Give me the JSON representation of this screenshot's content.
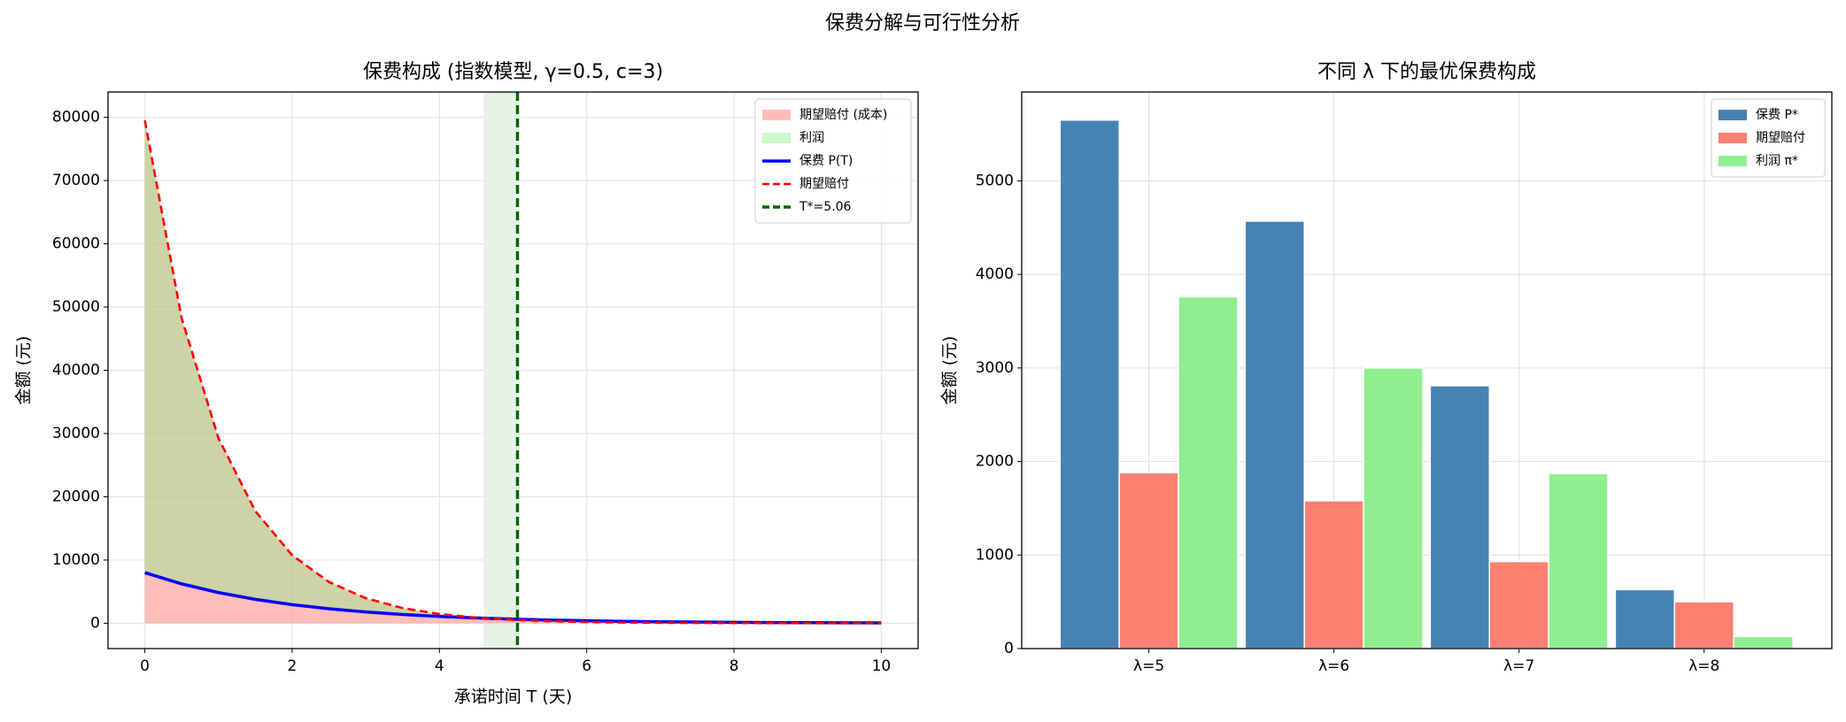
{
  "title": "保费分解与可行性分析",
  "chart_data": [
    {
      "type": "line",
      "title": "保费构成 (指数模型, γ=0.5, c=3)",
      "xlabel": "承诺时间 T (天)",
      "ylabel": "金额 (元)",
      "x": [
        0,
        0.5,
        1,
        1.5,
        2,
        2.5,
        3,
        3.5,
        4,
        4.5,
        5,
        5.5,
        6,
        6.5,
        7,
        7.5,
        8,
        8.5,
        9,
        9.5,
        10
      ],
      "series": [
        {
          "name": "保费 P(T)",
          "color": "#0000ff",
          "dashed": false,
          "values": [
            8000,
            6230,
            4850,
            3780,
            2940,
            2290,
            1790,
            1390,
            1080,
            840,
            660,
            510,
            400,
            310,
            240,
            190,
            150,
            110,
            90,
            70,
            50
          ]
        },
        {
          "name": "期望赔付",
          "color": "#ff0000",
          "dashed": true,
          "values": [
            79500,
            48220,
            29250,
            17740,
            10760,
            6530,
            3960,
            2400,
            1460,
            880,
            540,
            325,
            197,
            120,
            72,
            44,
            27,
            16,
            10,
            6,
            4
          ]
        }
      ],
      "fills": [
        {
          "name": "期望赔付 (成本)",
          "color": "#ff9a94"
        },
        {
          "name": "利润",
          "color": "#90ee90"
        }
      ],
      "vline": {
        "x": 5.06,
        "label": "T*=5.06",
        "color": "#006400"
      },
      "vspan": {
        "range": [
          4.6,
          5.06
        ],
        "color": "#e6f2e6"
      },
      "xlim": [
        -0.5,
        10.5
      ],
      "xticks": [
        0,
        2,
        4,
        6,
        8,
        10
      ],
      "ylim": [
        -4000,
        84000
      ],
      "yticks": [
        0,
        10000,
        20000,
        30000,
        40000,
        50000,
        60000,
        70000,
        80000
      ],
      "grid": true,
      "legend": "upper right"
    },
    {
      "type": "bar",
      "title": "不同 λ 下的最优保费构成",
      "ylabel": "金额 (元)",
      "categories": [
        "λ=5",
        "λ=6",
        "λ=7",
        "λ=8"
      ],
      "series": [
        {
          "name": "保费 P*",
          "color": "#4682b4",
          "values": [
            5650,
            4570,
            2810,
            630
          ]
        },
        {
          "name": "期望赔付",
          "color": "#fa8072",
          "values": [
            1880,
            1580,
            930,
            500
          ]
        },
        {
          "name": "利润 π*",
          "color": "#90ee90",
          "values": [
            3760,
            3000,
            1870,
            130
          ]
        }
      ],
      "ylim": [
        0,
        5950
      ],
      "yticks": [
        0,
        1000,
        2000,
        3000,
        4000,
        5000
      ],
      "grid": true,
      "legend": "upper right"
    }
  ]
}
